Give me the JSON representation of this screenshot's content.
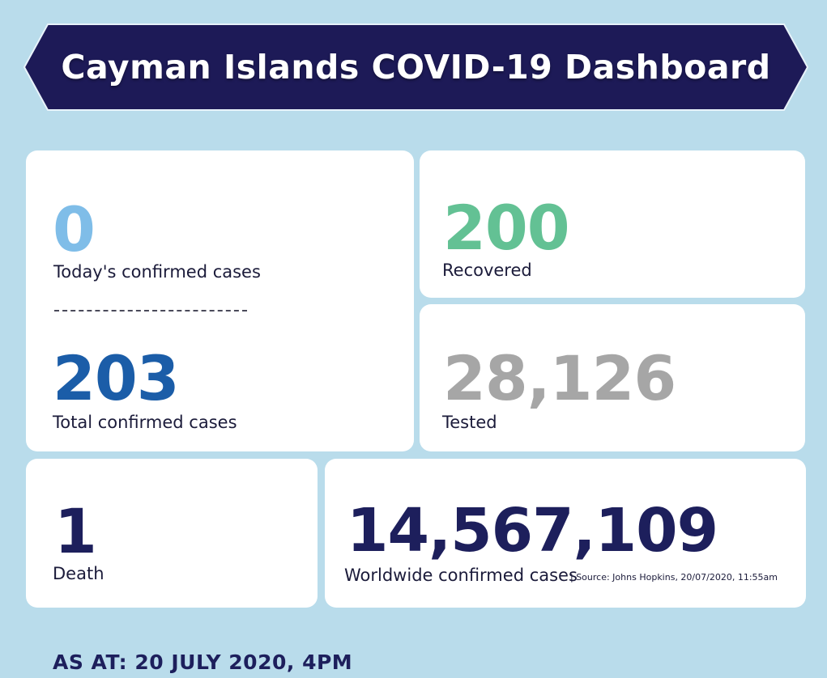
{
  "title": "Cayman Islands COVID-19 Dashboard",
  "stats": {
    "today": {
      "value": "0",
      "label": "Today's confirmed cases"
    },
    "total": {
      "value": "203",
      "label": "Total confirmed cases"
    },
    "recovered": {
      "value": "200",
      "label": "Recovered"
    },
    "tested": {
      "value": "28,126",
      "label": "Tested"
    },
    "death": {
      "value": "1",
      "label": "Death"
    },
    "worldwide": {
      "value": "14,567,109",
      "label": "Worldwide confirmed cases",
      "source": "| Source: Johns Hopkins, 20/07/2020, 11:55am"
    }
  },
  "as_at": "AS AT: 20 JULY 2020, 4PM",
  "colors": {
    "background": "#b9dceb",
    "banner": "#1d1a57",
    "today": "#7fbde8",
    "total": "#1b5da8",
    "recovered": "#63c194",
    "tested": "#a6a6a6",
    "death": "#1d1f5c",
    "worldwide": "#1d1f5c"
  }
}
